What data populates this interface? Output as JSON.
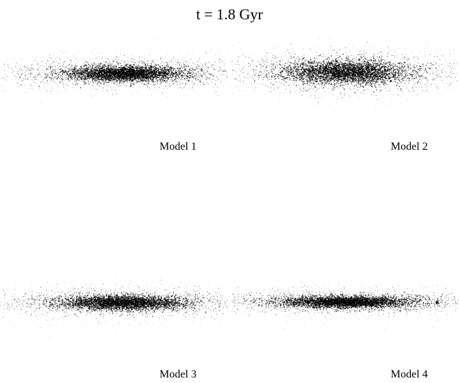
{
  "figure": {
    "title": "t = 1.8 Gyr"
  },
  "panels": [
    {
      "label": "Model 1"
    },
    {
      "label": "Model 2"
    },
    {
      "label": "Model 3"
    },
    {
      "label": "Model 4"
    }
  ]
}
